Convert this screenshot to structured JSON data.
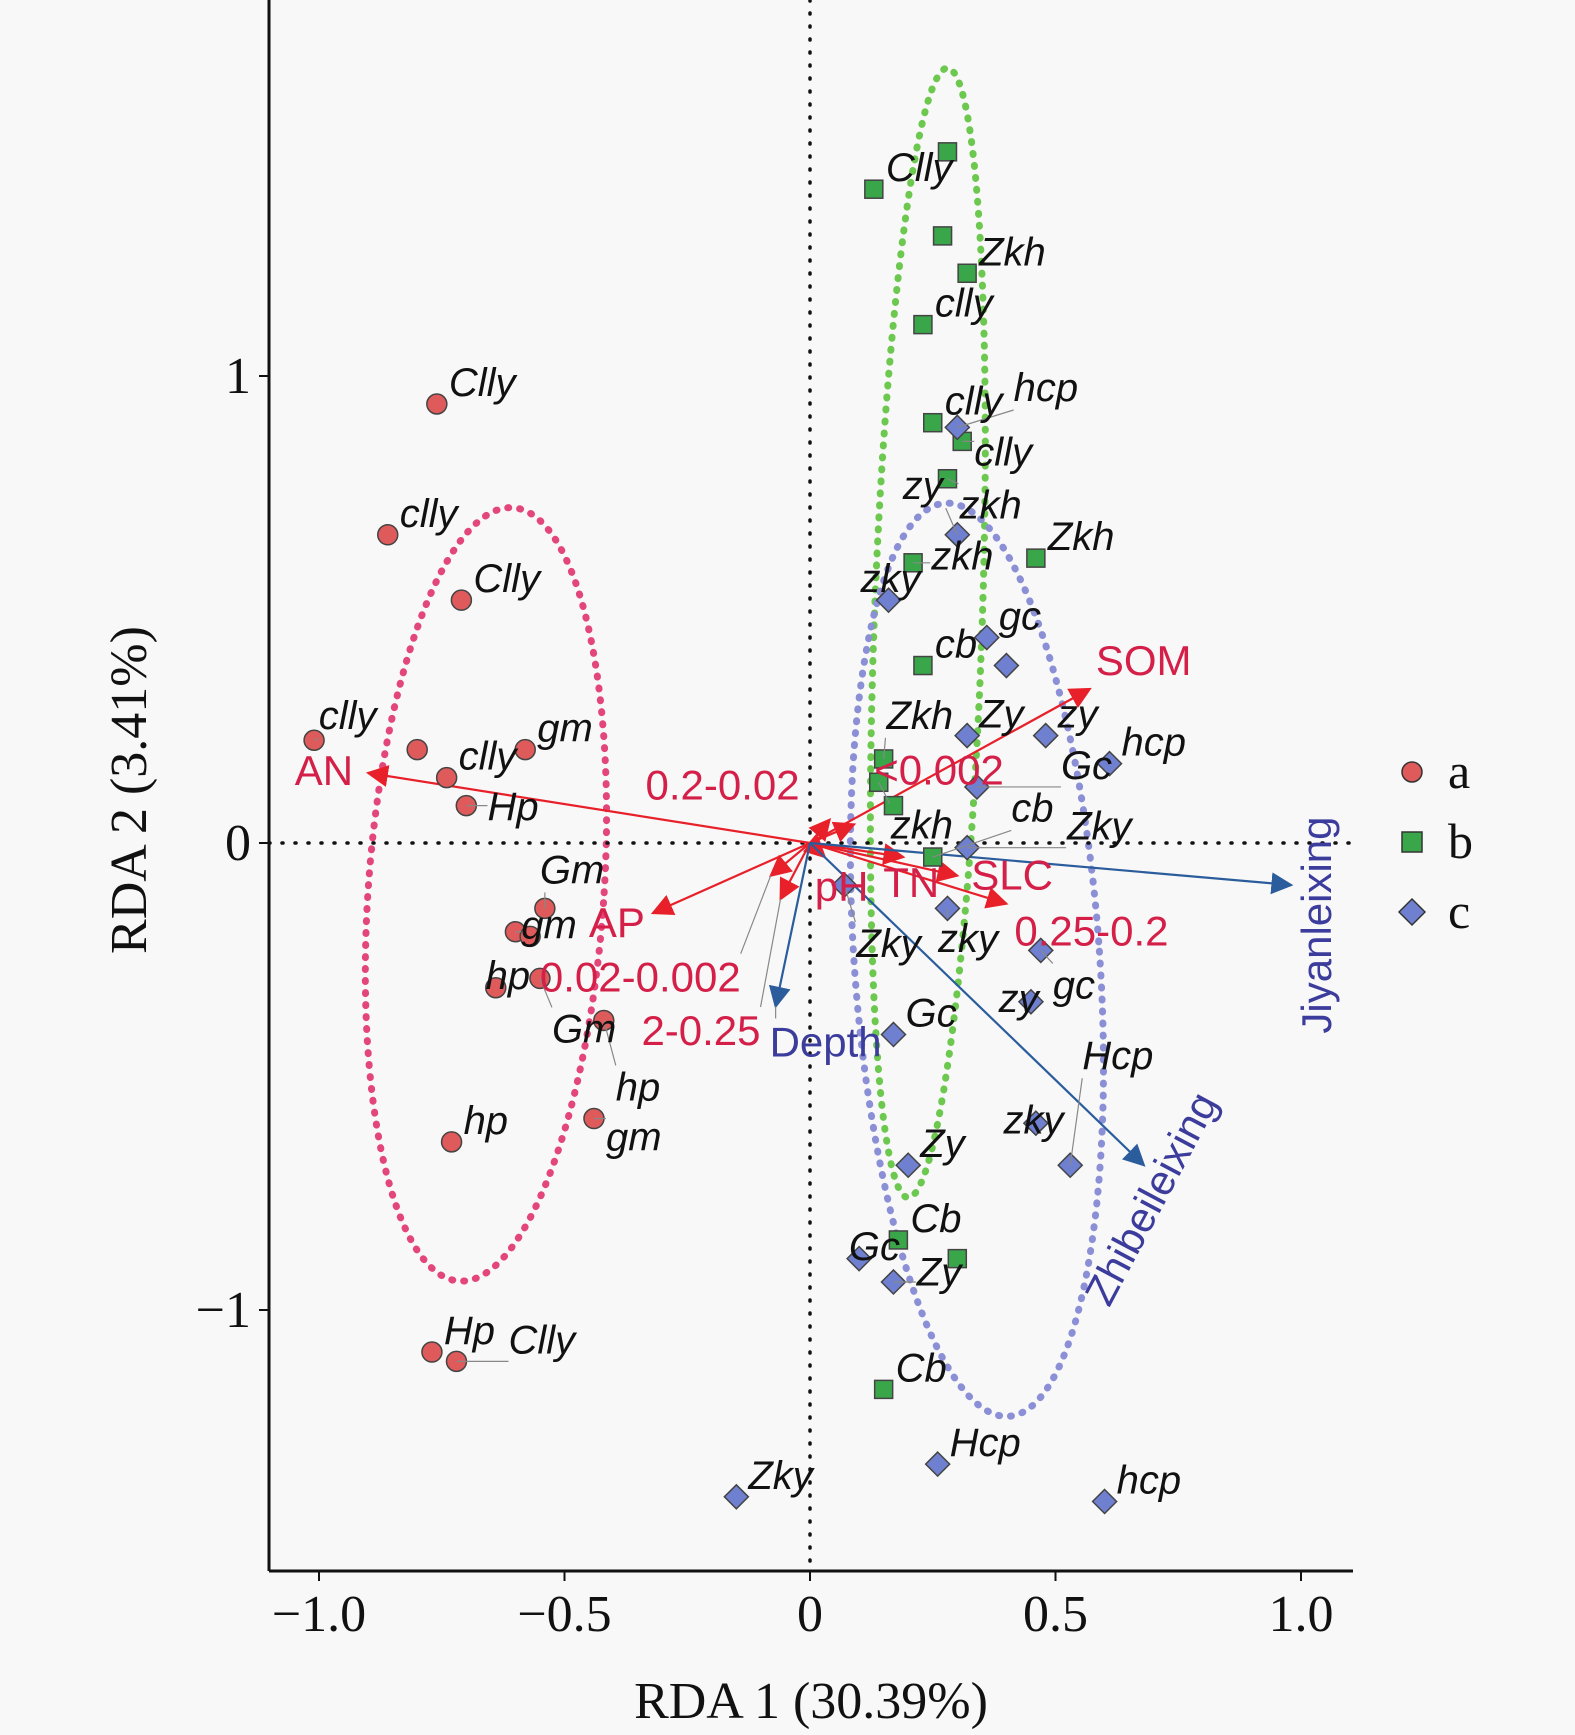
{
  "chart_data": {
    "type": "scatter",
    "subtype": "RDA biplot",
    "xlabel": "RDA 1 (30.39%)",
    "ylabel": "RDA 2 (3.41%)",
    "xlim": [
      -1.12,
      1.1
    ],
    "ylim": [
      -1.56,
      1.8
    ],
    "xticks": [
      {
        "v": -1.0,
        "label": "−1.0"
      },
      {
        "v": -0.5,
        "label": "−0.5"
      },
      {
        "v": 0,
        "label": "0"
      },
      {
        "v": 0.5,
        "label": "0.5"
      },
      {
        "v": 1.0,
        "label": "1.0"
      }
    ],
    "yticks": [
      {
        "v": -1,
        "label": "−1"
      },
      {
        "v": 0,
        "label": "0"
      },
      {
        "v": 1,
        "label": "1"
      }
    ],
    "legend": {
      "position": "right",
      "entries": [
        "a",
        "b",
        "c"
      ]
    },
    "groups": [
      {
        "name": "a",
        "marker": "circle",
        "color": "#df5a5a",
        "ellipse_color": "#e2467a",
        "ellipse": {
          "cx": -0.66,
          "cy": -0.11,
          "rx": 0.24,
          "ry": 0.83,
          "angle": 4
        },
        "points": [
          {
            "x": -0.76,
            "y": 0.94,
            "label": "Clly"
          },
          {
            "x": -0.86,
            "y": 0.66,
            "label": "clly"
          },
          {
            "x": -0.71,
            "y": 0.52,
            "label": "Clly"
          },
          {
            "x": -1.01,
            "y": 0.22,
            "label": "clly"
          },
          {
            "x": -0.8,
            "y": 0.2,
            "label": ""
          },
          {
            "x": -0.74,
            "y": 0.14,
            "label": "clly"
          },
          {
            "x": -0.7,
            "y": 0.08,
            "label": "Hp"
          },
          {
            "x": -0.58,
            "y": 0.2,
            "label": "gm"
          },
          {
            "x": -0.54,
            "y": -0.14,
            "label": "Gm"
          },
          {
            "x": -0.6,
            "y": -0.19,
            "label": "gm"
          },
          {
            "x": -0.57,
            "y": -0.2,
            "label": ""
          },
          {
            "x": -0.55,
            "y": -0.29,
            "label": "Gm"
          },
          {
            "x": -0.64,
            "y": -0.31,
            "label": "hp"
          },
          {
            "x": -0.42,
            "y": -0.38,
            "label": "hp"
          },
          {
            "x": -0.44,
            "y": -0.59,
            "label": "gm"
          },
          {
            "x": -0.73,
            "y": -0.64,
            "label": "hp"
          },
          {
            "x": -0.77,
            "y": -1.09,
            "label": "Hp"
          },
          {
            "x": -0.72,
            "y": -1.11,
            "label": "Clly"
          }
        ]
      },
      {
        "name": "b",
        "marker": "square",
        "color": "#3aa64a",
        "ellipse_color": "#6cc84e",
        "ellipse": {
          "cx": 0.24,
          "cy": 0.45,
          "rx": 0.11,
          "ry": 1.21,
          "angle": 2
        },
        "points": [
          {
            "x": 0.28,
            "y": 1.48,
            "label": ""
          },
          {
            "x": 0.13,
            "y": 1.4,
            "label": "Clly"
          },
          {
            "x": 0.27,
            "y": 1.3,
            "label": ""
          },
          {
            "x": 0.32,
            "y": 1.22,
            "label": "Zkh"
          },
          {
            "x": 0.23,
            "y": 1.11,
            "label": "clly"
          },
          {
            "x": 0.25,
            "y": 0.9,
            "label": "clly"
          },
          {
            "x": 0.31,
            "y": 0.86,
            "label": "clly"
          },
          {
            "x": 0.28,
            "y": 0.78,
            "label": "zkh"
          },
          {
            "x": 0.46,
            "y": 0.61,
            "label": "Zkh"
          },
          {
            "x": 0.21,
            "y": 0.6,
            "label": "zkh"
          },
          {
            "x": 0.23,
            "y": 0.38,
            "label": "cb"
          },
          {
            "x": 0.15,
            "y": 0.18,
            "label": "Zkh"
          },
          {
            "x": 0.14,
            "y": 0.13,
            "label": "zkh"
          },
          {
            "x": 0.17,
            "y": 0.08,
            "label": ""
          },
          {
            "x": 0.25,
            "y": -0.03,
            "label": "cb"
          },
          {
            "x": 0.18,
            "y": -0.85,
            "label": "Cb"
          },
          {
            "x": 0.3,
            "y": -0.89,
            "label": ""
          },
          {
            "x": 0.15,
            "y": -1.17,
            "label": "Cb"
          }
        ]
      },
      {
        "name": "c",
        "marker": "diamond",
        "color": "#6f80d0",
        "ellipse_color": "#8b8fd6",
        "ellipse": {
          "cx": 0.34,
          "cy": -0.25,
          "rx": 0.25,
          "ry": 0.98,
          "angle": -4
        },
        "points": [
          {
            "x": 0.3,
            "y": 0.89,
            "label": "hcp"
          },
          {
            "x": 0.3,
            "y": 0.66,
            "label": "zy"
          },
          {
            "x": 0.16,
            "y": 0.52,
            "label": "zky"
          },
          {
            "x": 0.36,
            "y": 0.44,
            "label": "gc"
          },
          {
            "x": 0.4,
            "y": 0.38,
            "label": ""
          },
          {
            "x": 0.32,
            "y": 0.23,
            "label": "Zy"
          },
          {
            "x": 0.48,
            "y": 0.23,
            "label": "zy"
          },
          {
            "x": 0.61,
            "y": 0.17,
            "label": "hcp"
          },
          {
            "x": 0.34,
            "y": 0.12,
            "label": "Gc"
          },
          {
            "x": 0.32,
            "y": -0.01,
            "label": "Zky"
          },
          {
            "x": 0.28,
            "y": -0.14,
            "label": "zky"
          },
          {
            "x": 0.07,
            "y": -0.09,
            "label": "Zky"
          },
          {
            "x": 0.47,
            "y": -0.23,
            "label": "gc"
          },
          {
            "x": 0.45,
            "y": -0.34,
            "label": "zy"
          },
          {
            "x": 0.17,
            "y": -0.41,
            "label": "Gc"
          },
          {
            "x": 0.46,
            "y": -0.6,
            "label": "zky"
          },
          {
            "x": 0.53,
            "y": -0.69,
            "label": "Hcp"
          },
          {
            "x": 0.2,
            "y": -0.69,
            "label": "Zy"
          },
          {
            "x": 0.1,
            "y": -0.89,
            "label": "Gc"
          },
          {
            "x": 0.17,
            "y": -0.94,
            "label": "Zy"
          },
          {
            "x": 0.26,
            "y": -1.33,
            "label": "Hcp"
          },
          {
            "x": -0.15,
            "y": -1.4,
            "label": "Zky"
          },
          {
            "x": 0.6,
            "y": -1.41,
            "label": "hcp"
          }
        ]
      }
    ],
    "vectors": [
      {
        "name": "AN",
        "x": -0.9,
        "y": 0.15,
        "color": "#e8202a",
        "label_color": "#d42048"
      },
      {
        "name": "SOM",
        "x": 0.57,
        "y": 0.33,
        "color": "#e8202a",
        "label_color": "#d42048"
      },
      {
        "name": "0.25-0.2",
        "x": 0.4,
        "y": -0.13,
        "color": "#e8202a",
        "label_color": "#d42048"
      },
      {
        "name": "SLC",
        "x": 0.3,
        "y": -0.07,
        "color": "#e8202a",
        "label_color": "#d42048"
      },
      {
        "name": "TN",
        "x": 0.19,
        "y": -0.03,
        "color": "#e8202a",
        "label_color": "#d42048"
      },
      {
        "name": "pH",
        "x": 0.03,
        "y": -0.03,
        "color": "#e8202a",
        "label_color": "#d42048"
      },
      {
        "name": "AP",
        "x": -0.32,
        "y": -0.15,
        "color": "#e8202a",
        "label_color": "#d42048"
      },
      {
        "name": "0.02-0.002",
        "x": -0.08,
        "y": -0.07,
        "color": "#e8202a",
        "label_color": "#d42048"
      },
      {
        "name": "2-0.25",
        "x": -0.06,
        "y": -0.12,
        "color": "#e8202a",
        "label_color": "#d42048"
      },
      {
        "name": "0.2-0.02",
        "x": 0.04,
        "y": 0.05,
        "color": "#e8202a",
        "label_color": "#d42048"
      },
      {
        "name": "<0.002",
        "x": 0.09,
        "y": 0.04,
        "color": "#e8202a",
        "label_color": "#d42048"
      },
      {
        "name": "Jiyanleixing",
        "x": 0.98,
        "y": -0.09,
        "color": "#2b5c9c",
        "label_color": "#3c3c9c"
      },
      {
        "name": "Zhibeileixing",
        "x": 0.68,
        "y": -0.69,
        "color": "#2b5c9c",
        "label_color": "#3c3c9c"
      },
      {
        "name": "Depth",
        "x": -0.07,
        "y": -0.35,
        "color": "#2b5c9c",
        "label_color": "#3c3c9c"
      }
    ]
  }
}
